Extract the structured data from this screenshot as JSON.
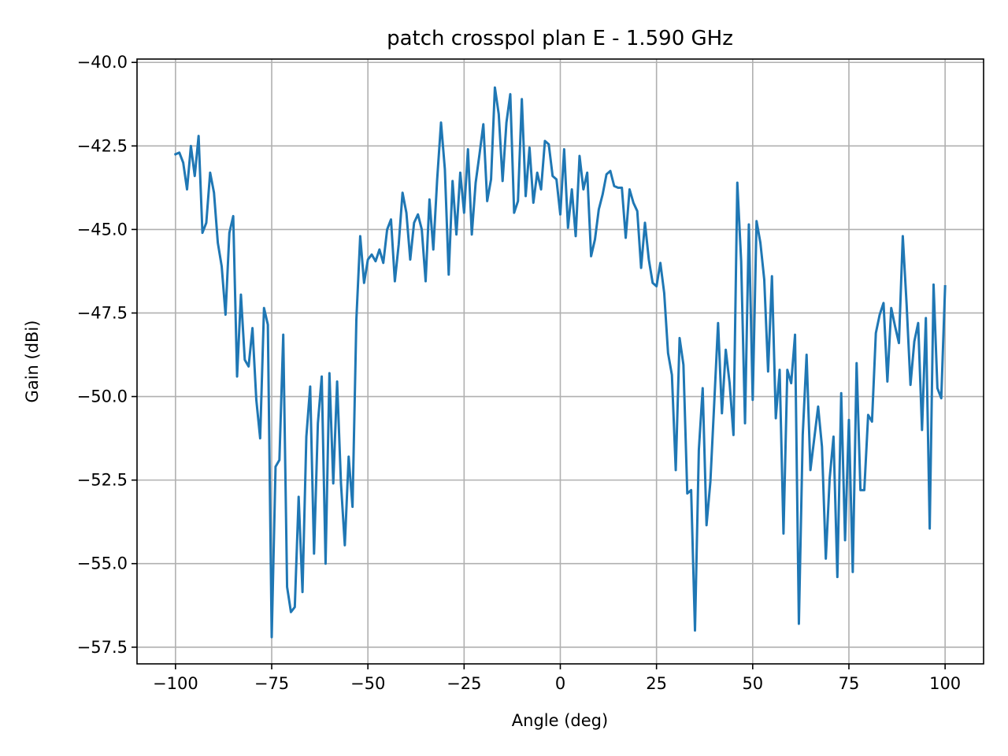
{
  "chart_data": {
    "type": "line",
    "title": "patch crosspol plan E - 1.590 GHz",
    "xlabel": "Angle (deg)",
    "ylabel": "Gain (dBi)",
    "xlim": [
      -110,
      110
    ],
    "ylim": [
      -58,
      -39.9
    ],
    "xticks": [
      -100,
      -75,
      -50,
      -25,
      0,
      25,
      50,
      75,
      100
    ],
    "xtick_labels": [
      "−100",
      "−75",
      "−50",
      "−25",
      "0",
      "25",
      "50",
      "75",
      "100"
    ],
    "yticks": [
      -40.0,
      -42.5,
      -45.0,
      -47.5,
      -50.0,
      -52.5,
      -55.0,
      -57.5
    ],
    "ytick_labels": [
      "−40.0",
      "−42.5",
      "−45.0",
      "−47.5",
      "−50.0",
      "−52.5",
      "−55.0",
      "−57.5"
    ],
    "grid": true,
    "series": [
      {
        "color": "#1f77b4",
        "x": [
          -100,
          -99,
          -98,
          -97,
          -96,
          -95,
          -94,
          -93,
          -92,
          -91,
          -90,
          -89,
          -88,
          -87,
          -86,
          -85,
          -84,
          -83,
          -82,
          -81,
          -80,
          -79,
          -78,
          -77,
          -76,
          -75,
          -74,
          -73,
          -72,
          -71,
          -70,
          -69,
          -68,
          -67,
          -66,
          -65,
          -64,
          -63,
          -62,
          -61,
          -60,
          -59,
          -58,
          -57,
          -56,
          -55,
          -54,
          -53,
          -52,
          -51,
          -50,
          -49,
          -48,
          -47,
          -46,
          -45,
          -44,
          -43,
          -42,
          -41,
          -40,
          -39,
          -38,
          -37,
          -36,
          -35,
          -34,
          -33,
          -32,
          -31,
          -30,
          -29,
          -28,
          -27,
          -26,
          -25,
          -24,
          -23,
          -22,
          -21,
          -20,
          -19,
          -18,
          -17,
          -16,
          -15,
          -14,
          -13,
          -12,
          -11,
          -10,
          -9,
          -8,
          -7,
          -6,
          -5,
          -4,
          -3,
          -2,
          -1,
          0,
          1,
          2,
          3,
          4,
          5,
          6,
          7,
          8,
          9,
          10,
          11,
          12,
          13,
          14,
          15,
          16,
          17,
          18,
          19,
          20,
          21,
          22,
          23,
          24,
          25,
          26,
          27,
          28,
          29,
          30,
          31,
          32,
          33,
          34,
          35,
          36,
          37,
          38,
          39,
          40,
          41,
          42,
          43,
          44,
          45,
          46,
          47,
          48,
          49,
          50,
          51,
          52,
          53,
          54,
          55,
          56,
          57,
          58,
          59,
          60,
          61,
          62,
          63,
          64,
          65,
          66,
          67,
          68,
          69,
          70,
          71,
          72,
          73,
          74,
          75,
          76,
          77,
          78,
          79,
          80,
          81,
          82,
          83,
          84,
          85,
          86,
          87,
          88,
          89,
          90,
          91,
          92,
          93,
          94,
          95,
          96,
          97,
          98,
          99,
          100
        ],
        "y": [
          -42.75,
          -42.7,
          -43.0,
          -43.8,
          -42.5,
          -43.4,
          -42.2,
          -45.1,
          -44.8,
          -43.3,
          -43.9,
          -45.4,
          -46.1,
          -47.55,
          -45.1,
          -44.6,
          -49.4,
          -46.95,
          -48.9,
          -49.1,
          -47.95,
          -50.1,
          -51.25,
          -47.35,
          -47.85,
          -57.2,
          -52.1,
          -51.9,
          -48.15,
          -55.7,
          -56.45,
          -56.3,
          -53.0,
          -55.85,
          -51.2,
          -49.7,
          -54.7,
          -50.8,
          -49.4,
          -55.0,
          -49.3,
          -52.6,
          -49.55,
          -52.6,
          -54.45,
          -51.8,
          -53.3,
          -47.7,
          -45.2,
          -46.6,
          -45.9,
          -45.75,
          -45.95,
          -45.6,
          -46.0,
          -45.0,
          -44.7,
          -46.55,
          -45.45,
          -43.9,
          -44.5,
          -45.9,
          -44.8,
          -44.55,
          -45.0,
          -46.55,
          -44.1,
          -45.6,
          -43.5,
          -41.8,
          -43.2,
          -46.35,
          -43.55,
          -45.15,
          -43.3,
          -44.5,
          -42.6,
          -45.15,
          -43.6,
          -42.75,
          -41.85,
          -44.15,
          -43.5,
          -40.75,
          -41.55,
          -43.55,
          -41.8,
          -40.95,
          -44.5,
          -44.15,
          -41.1,
          -44.0,
          -42.55,
          -44.2,
          -43.3,
          -43.8,
          -42.35,
          -42.45,
          -43.4,
          -43.5,
          -44.55,
          -42.6,
          -44.95,
          -43.8,
          -45.2,
          -42.8,
          -43.8,
          -43.3,
          -45.8,
          -45.3,
          -44.4,
          -43.95,
          -43.35,
          -43.25,
          -43.7,
          -43.75,
          -43.75,
          -45.25,
          -43.8,
          -44.2,
          -44.45,
          -46.15,
          -44.8,
          -45.9,
          -46.6,
          -46.7,
          -46.0,
          -46.9,
          -48.7,
          -49.35,
          -52.2,
          -48.25,
          -49.05,
          -52.9,
          -52.8,
          -57.0,
          -51.6,
          -49.75,
          -53.85,
          -52.55,
          -50.2,
          -47.8,
          -50.5,
          -48.6,
          -49.6,
          -51.15,
          -43.6,
          -45.95,
          -50.8,
          -44.85,
          -50.1,
          -44.75,
          -45.4,
          -46.5,
          -49.25,
          -46.4,
          -50.65,
          -49.2,
          -54.1,
          -49.2,
          -49.6,
          -48.15,
          -56.8,
          -51.15,
          -48.75,
          -52.2,
          -51.25,
          -50.3,
          -51.5,
          -54.85,
          -52.45,
          -51.2,
          -55.4,
          -49.9,
          -54.3,
          -50.7,
          -55.25,
          -49.0,
          -52.8,
          -52.8,
          -50.55,
          -50.75,
          -48.1,
          -47.55,
          -47.2,
          -49.55,
          -47.35,
          -47.9,
          -48.4,
          -45.2,
          -47.25,
          -49.65,
          -48.35,
          -47.8,
          -51.0,
          -47.65,
          -53.95,
          -46.65,
          -49.75,
          -50.05,
          -46.7
        ]
      }
    ]
  }
}
